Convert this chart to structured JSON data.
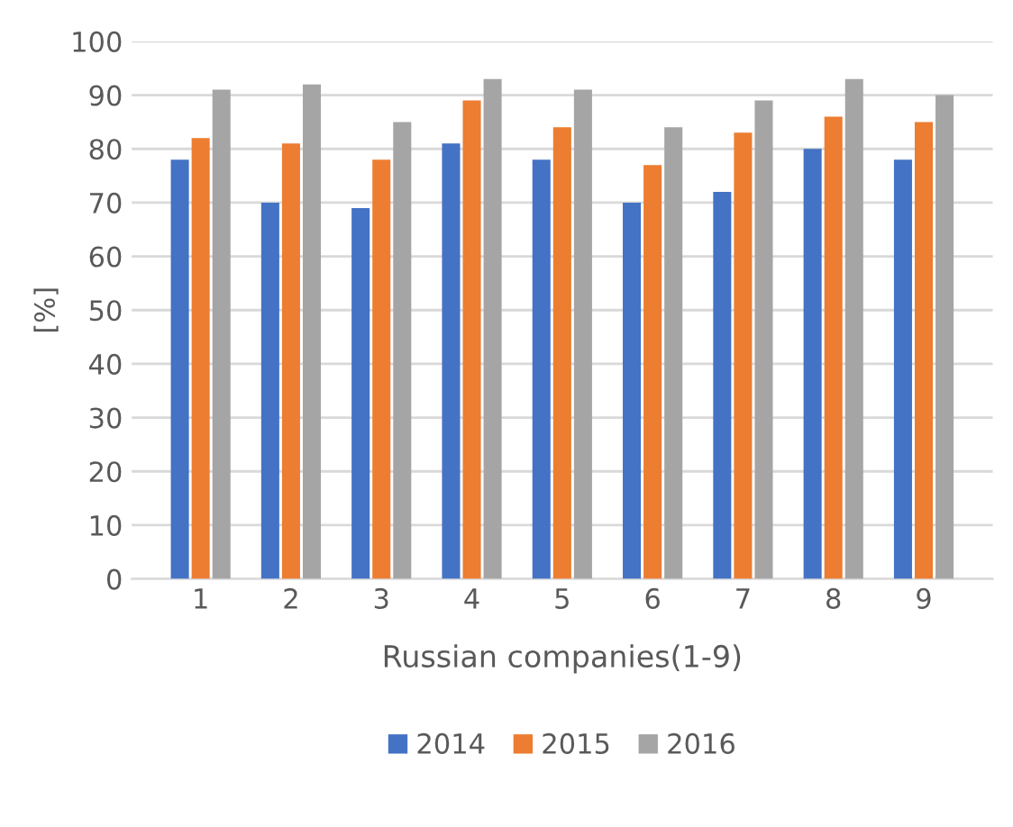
{
  "chart_data": {
    "type": "bar",
    "xlabel": "Russian companies(1-9)",
    "ylabel": "[%]",
    "categories": [
      "1",
      "2",
      "3",
      "4",
      "5",
      "6",
      "7",
      "8",
      "9"
    ],
    "series": [
      {
        "name": "2014",
        "color": "#4472c4",
        "values": [
          78,
          70,
          69,
          81,
          78,
          70,
          72,
          80,
          78
        ]
      },
      {
        "name": "2015",
        "color": "#ed7d31",
        "values": [
          82,
          81,
          78,
          89,
          84,
          77,
          83,
          86,
          85
        ]
      },
      {
        "name": "2016",
        "color": "#a5a5a5",
        "values": [
          91,
          92,
          85,
          93,
          91,
          84,
          89,
          93,
          90
        ]
      }
    ],
    "ylim": [
      0,
      100
    ],
    "yticks": [
      0,
      10,
      20,
      30,
      40,
      50,
      60,
      70,
      80,
      90,
      100
    ],
    "grid": "y",
    "legend": "bottom"
  }
}
